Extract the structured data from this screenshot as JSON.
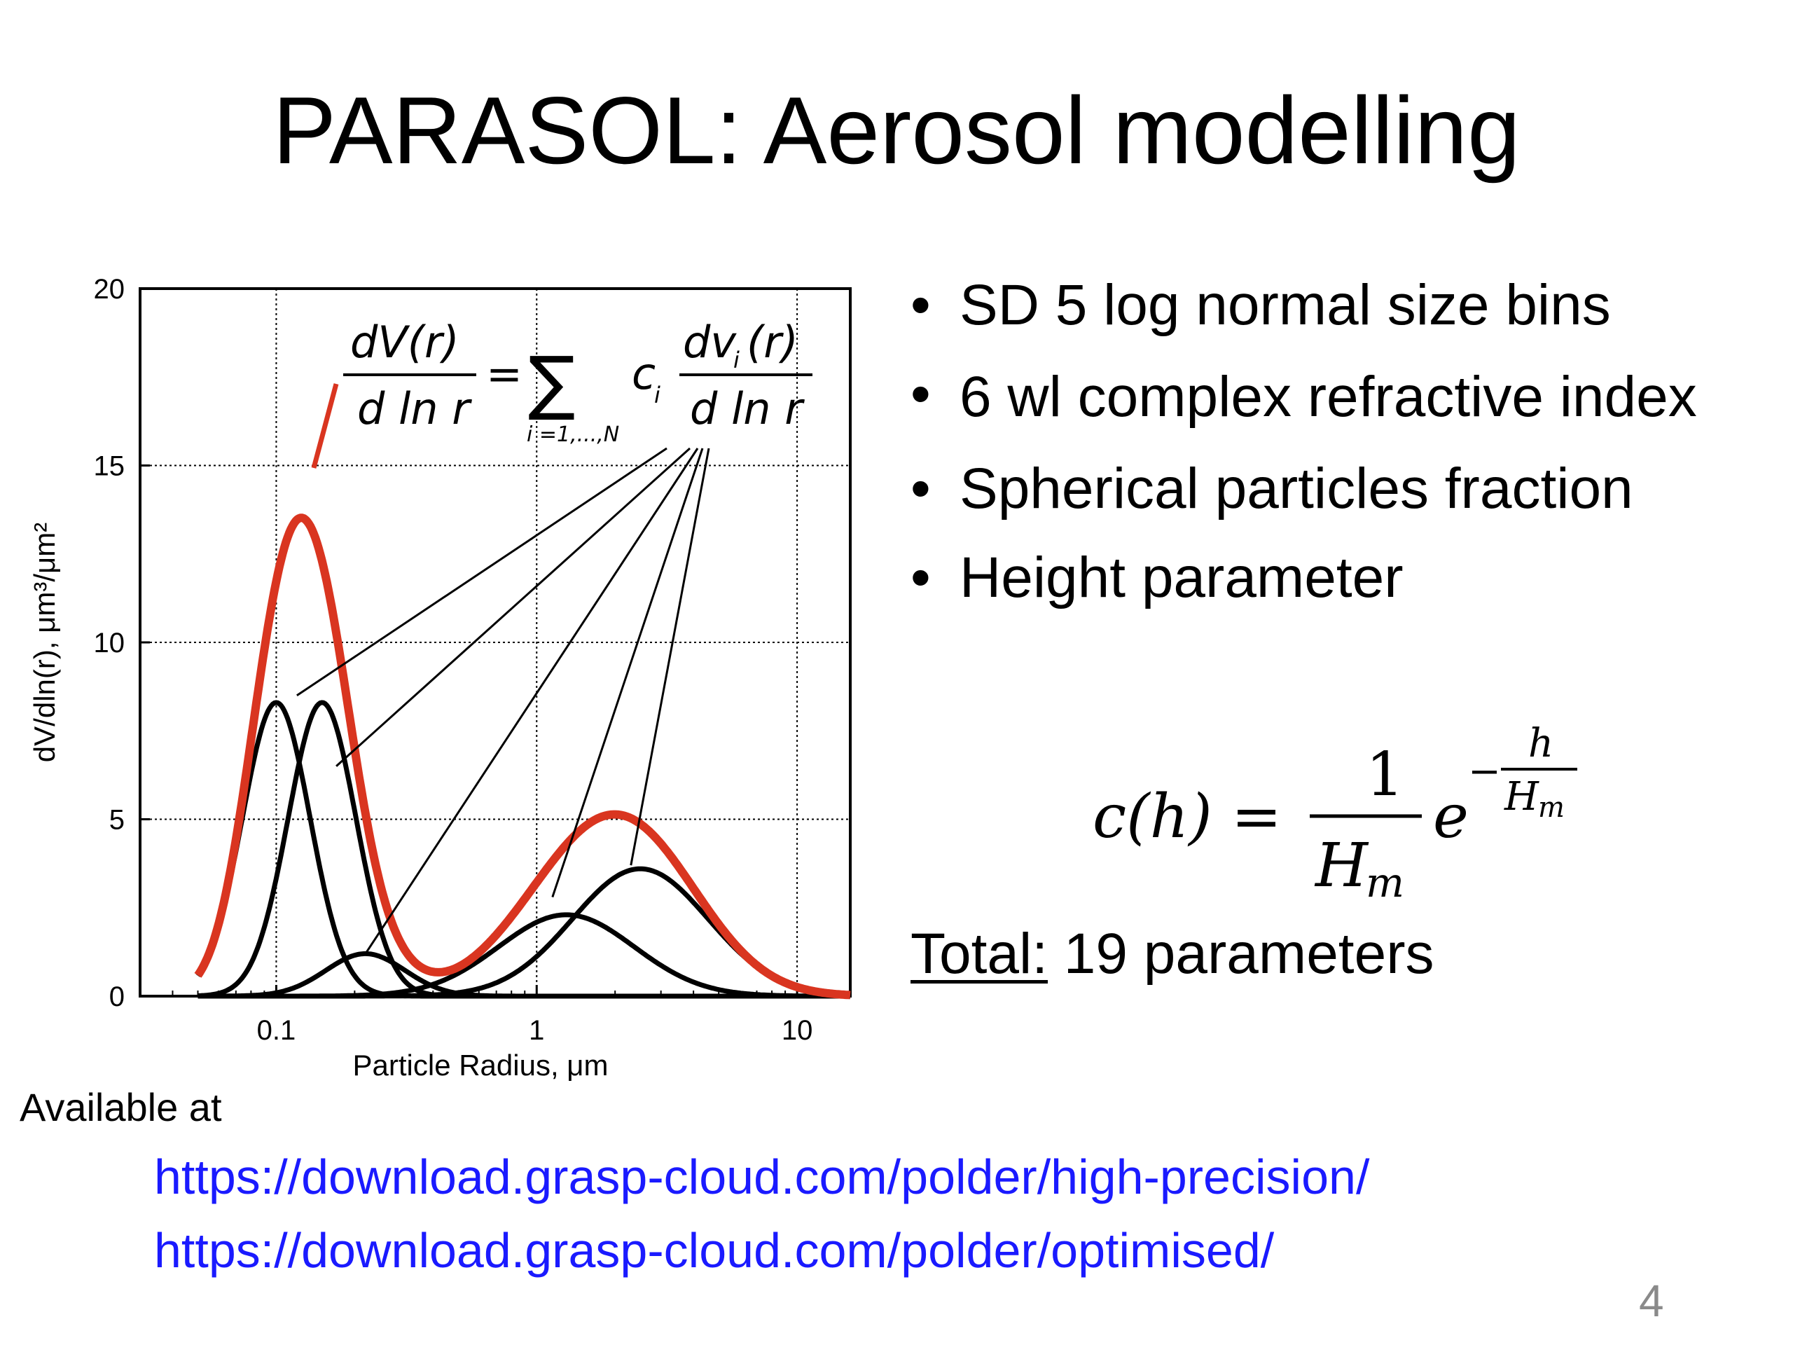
{
  "slide": {
    "title": "PARASOL: Aerosol modelling",
    "page_number": "4"
  },
  "bullets": [
    "SD 5 log normal size bins",
    "6 wl complex refractive index",
    "Spherical particles fraction",
    "Height parameter"
  ],
  "bullet_symbol": "•",
  "formula": {
    "lhs": "c(h) =",
    "numerator": "1",
    "denominator": "H",
    "denominator_sub": "m",
    "base": "e",
    "exp_sign": "−",
    "exp_num": "h",
    "exp_den": "H",
    "exp_den_sub": "m"
  },
  "total": {
    "label": "Total:",
    "value": " 19 parameters"
  },
  "footer": {
    "available_label": "Available at",
    "links": [
      "https://download.grasp-cloud.com/polder/high-precision/",
      "https://download.grasp-cloud.com/polder/optimised/"
    ]
  },
  "colors": {
    "total_curve": "#d93520",
    "mode_curves": "#000000",
    "link": "#1a1aff",
    "page_number": "#8a8a8a"
  },
  "chart_data": {
    "type": "line",
    "xscale": "log",
    "xlim": [
      0.03,
      16
    ],
    "ylim": [
      0,
      20
    ],
    "xticks": [
      "0.1",
      "1",
      "10"
    ],
    "yticks": [
      "0",
      "5",
      "10",
      "15",
      "20"
    ],
    "xlabel": "Particle Radius, μm",
    "ylabel": "dV/dln(r), μm³/μm²",
    "grid": true,
    "equation": {
      "lhs_num": "dV(r)",
      "lhs_den": "d ln r",
      "equals": "=",
      "sum": "∑",
      "sum_index": "i =1,...,N",
      "coef": "c",
      "coef_sub": "i",
      "rhs_num": "dv",
      "rhs_num_sub": "i",
      "rhs_num_tail": "(r)",
      "rhs_den": "d ln r"
    },
    "modes": [
      {
        "peak_r": 0.1,
        "peak_v": 8.3,
        "sigma": 0.3
      },
      {
        "peak_r": 0.15,
        "peak_v": 8.3,
        "sigma": 0.3
      },
      {
        "peak_r": 0.22,
        "peak_v": 1.2,
        "sigma": 0.35
      },
      {
        "peak_r": 1.3,
        "peak_v": 2.3,
        "sigma": 0.6
      },
      {
        "peak_r": 2.5,
        "peak_v": 3.6,
        "sigma": 0.6
      }
    ],
    "total_series": {
      "name": "",
      "peak_r": 0.12,
      "peak_v": 14.6,
      "second_peak_r": 2.0,
      "second_peak_v": 5.3
    }
  }
}
